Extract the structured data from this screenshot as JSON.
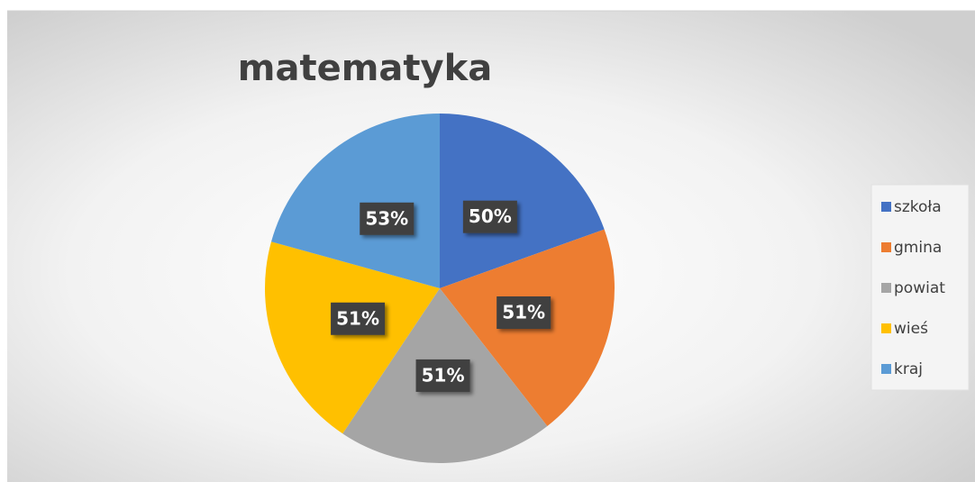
{
  "chart_data": {
    "type": "pie",
    "title": "matematyka",
    "categories": [
      "szkoła",
      "gmina",
      "powiat",
      "wieś",
      "kraj"
    ],
    "values": [
      50,
      51,
      51,
      51,
      53
    ],
    "value_labels": [
      "50%",
      "51%",
      "51%",
      "51%",
      "53%"
    ],
    "colors": [
      "#4472c4",
      "#ed7d31",
      "#a5a5a5",
      "#ffc000",
      "#5b9bd5"
    ],
    "legend": "right"
  }
}
